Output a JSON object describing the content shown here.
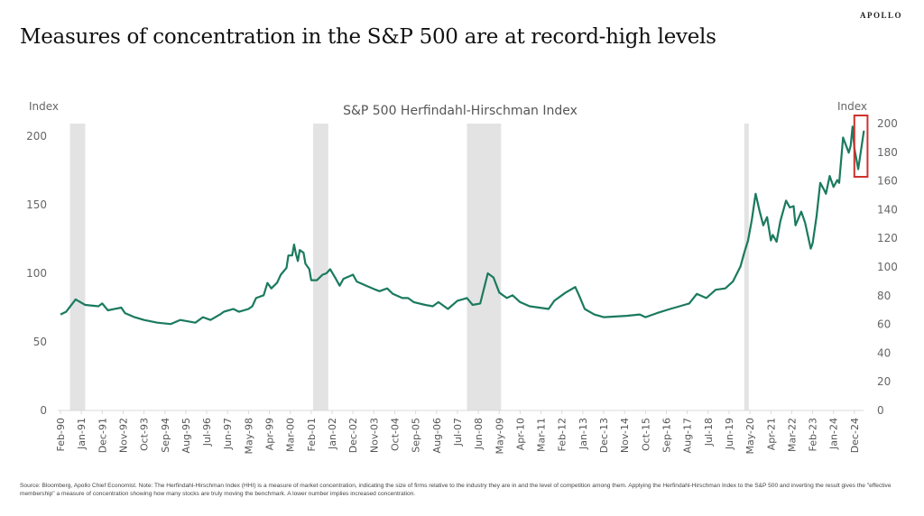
{
  "header": {
    "title": "Measures of concentration in the S&P 500 are at record-high levels",
    "brand": "APOLLO"
  },
  "footer": {
    "source": "Source: Bloomberg, Apollo Chief Economist. Note: The Herfindahl-Hirschman Index (HHI) is a measure of market concentration, indicating the size of firms relative to the industry they are in and the level of competition among them. Applying the Herfindahl-Hirschman Index to the S&P 500 and inverting the result gives the \"effective membership\" a measure of concentration showing how many stocks are truly moving the benchmark. A lower number implies increased concentration."
  },
  "chart_data": {
    "type": "line",
    "title": "S&P 500 Herfindahl-Hirschman Index",
    "ylabel_left": "Index",
    "ylabel_right": "Index",
    "yticks_left": [
      0,
      50,
      100,
      150,
      200
    ],
    "yticks_right": [
      0,
      20,
      40,
      60,
      80,
      100,
      120,
      140,
      160,
      180,
      200
    ],
    "ylim_left": [
      0,
      200
    ],
    "ylim_right": [
      0,
      200
    ],
    "xlim": [
      "1990-02",
      "2025-05"
    ],
    "xticks": [
      "Feb-90",
      "Jan-91",
      "Dec-91",
      "Nov-92",
      "Oct-93",
      "Sep-94",
      "Aug-95",
      "Jul-96",
      "Jun-97",
      "May-98",
      "Apr-99",
      "Mar-00",
      "Feb-01",
      "Jan-02",
      "Dec-02",
      "Nov-03",
      "Oct-04",
      "Sep-05",
      "Aug-06",
      "Jul-07",
      "Jun-08",
      "May-09",
      "Apr-10",
      "Mar-11",
      "Feb-12",
      "Jan-13",
      "Dec-13",
      "Nov-14",
      "Oct-15",
      "Sep-16",
      "Aug-17",
      "Jul-18",
      "Jun-19",
      "May-20",
      "Apr-21",
      "Mar-22",
      "Feb-23",
      "Jan-24",
      "Dec-24"
    ],
    "grid": false,
    "line_color": "#1a7a5e",
    "shading_color": "#e3e3e3",
    "highlight_color": "#d0312d",
    "recession_shading": [
      [
        "1990-07",
        "1991-03"
      ],
      [
        "2001-03",
        "2001-11"
      ],
      [
        "2007-12",
        "2009-06"
      ],
      [
        "2020-02",
        "2020-04"
      ]
    ],
    "highlight_box": {
      "from": "2024-11",
      "to": "2025-05",
      "ymin": 165,
      "ymax": 202
    },
    "series": [
      {
        "x": [
          "1990-02",
          "1990-05",
          "1990-10",
          "1991-03",
          "1991-10",
          "1991-12",
          "1992-03",
          "1992-10",
          "1992-12",
          "1993-05",
          "1993-10",
          "1994-05",
          "1994-12",
          "1995-05",
          "1996-01",
          "1996-05",
          "1996-09",
          "1997-02",
          "1997-04",
          "1997-09",
          "1997-12",
          "1998-05",
          "1998-07",
          "1998-09",
          "1999-01",
          "1999-03",
          "1999-05",
          "1999-08",
          "1999-10",
          "2000-01",
          "2000-02",
          "2000-04",
          "2000-05",
          "2000-06",
          "2000-07",
          "2000-08",
          "2000-10",
          "2000-11",
          "2001-01",
          "2001-02",
          "2001-05",
          "2001-08",
          "2001-10",
          "2001-12",
          "2002-03",
          "2002-05",
          "2002-07",
          "2002-12",
          "2003-02",
          "2003-07",
          "2003-12",
          "2004-02",
          "2004-06",
          "2004-09",
          "2005-02",
          "2005-05",
          "2005-08",
          "2006-02",
          "2006-06",
          "2006-09",
          "2007-02",
          "2007-07",
          "2007-12",
          "2008-03",
          "2008-07",
          "2008-11",
          "2009-02",
          "2009-05",
          "2009-09",
          "2009-12",
          "2010-04",
          "2010-09",
          "2011-02",
          "2011-07",
          "2011-10",
          "2012-04",
          "2012-09",
          "2012-11",
          "2013-02",
          "2013-07",
          "2013-12",
          "2014-12",
          "2015-07",
          "2015-10",
          "2016-04",
          "2016-11",
          "2017-04",
          "2017-09",
          "2018-01",
          "2018-06",
          "2018-11",
          "2019-04",
          "2019-08",
          "2019-12",
          "2020-02",
          "2020-04",
          "2020-06",
          "2020-08",
          "2020-10",
          "2020-12",
          "2021-02",
          "2021-04",
          "2021-05",
          "2021-07",
          "2021-09",
          "2021-12",
          "2022-02",
          "2022-04",
          "2022-05",
          "2022-08",
          "2022-10",
          "2023-01",
          "2023-02",
          "2023-04",
          "2023-06",
          "2023-08",
          "2023-09",
          "2023-11",
          "2024-01",
          "2024-03",
          "2024-04",
          "2024-06",
          "2024-09",
          "2024-10",
          "2024-11",
          "2024-12",
          "2025-02",
          "2025-05"
        ],
        "y": [
          70,
          72,
          81,
          77,
          76,
          78,
          73,
          75,
          71,
          68,
          66,
          64,
          63,
          66,
          64,
          68,
          66,
          70,
          72,
          74,
          72,
          74,
          76,
          82,
          84,
          93,
          89,
          93,
          99,
          104,
          113,
          113,
          121,
          114,
          109,
          117,
          115,
          107,
          103,
          95,
          95,
          99,
          100,
          103,
          96,
          91,
          96,
          99,
          94,
          91,
          88,
          87,
          89,
          85,
          82,
          82,
          79,
          77,
          76,
          79,
          74,
          80,
          82,
          77,
          78,
          100,
          97,
          86,
          82,
          84,
          79,
          76,
          75,
          74,
          80,
          86,
          90,
          84,
          74,
          70,
          68,
          69,
          70,
          68,
          71,
          74,
          76,
          78,
          85,
          82,
          88,
          89,
          94,
          105,
          115,
          124,
          139,
          158,
          146,
          135,
          141,
          124,
          128,
          123,
          138,
          153,
          148,
          149,
          135,
          145,
          137,
          118,
          122,
          141,
          166,
          161,
          158,
          171,
          163,
          168,
          166,
          199,
          188,
          193,
          207,
          191,
          176,
          204
        ]
      }
    ]
  }
}
